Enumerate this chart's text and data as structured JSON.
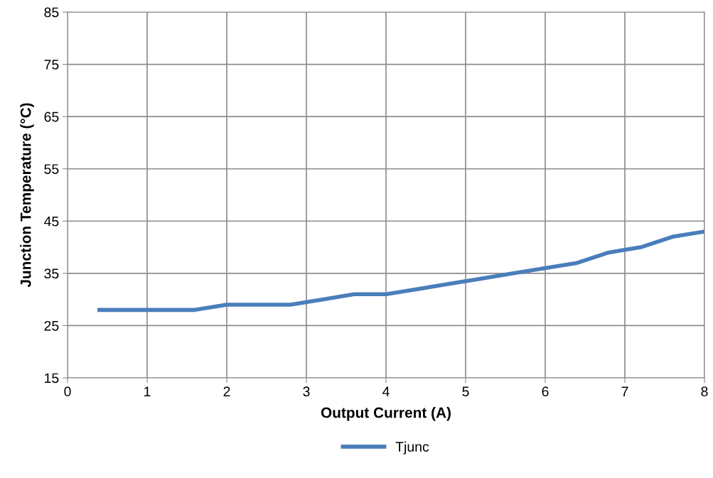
{
  "chart_data": {
    "type": "line",
    "xlabel": "Output Current (A)",
    "ylabel": "Junction Temperature (°C)",
    "x": [
      0.4,
      0.8,
      1.2,
      1.6,
      2.0,
      2.4,
      2.8,
      3.2,
      3.6,
      4.0,
      4.4,
      4.8,
      5.2,
      5.6,
      6.0,
      6.4,
      6.8,
      7.2,
      7.6,
      8.0
    ],
    "series": [
      {
        "name": "Tjunc",
        "color": "#4a7ebb",
        "values": [
          28,
          28,
          28,
          28,
          29,
          29,
          29,
          30,
          31,
          31,
          32,
          33,
          34,
          35,
          36,
          37,
          39,
          40,
          42,
          43
        ]
      }
    ],
    "xlim": [
      0,
      8
    ],
    "xticks": [
      0,
      1,
      2,
      3,
      4,
      5,
      6,
      7,
      8
    ],
    "ylim": [
      15,
      85
    ],
    "yticks": [
      15,
      25,
      35,
      45,
      55,
      65,
      75,
      85
    ],
    "grid": true,
    "legend": "bottom",
    "marker": "none",
    "line_style": "solid"
  }
}
